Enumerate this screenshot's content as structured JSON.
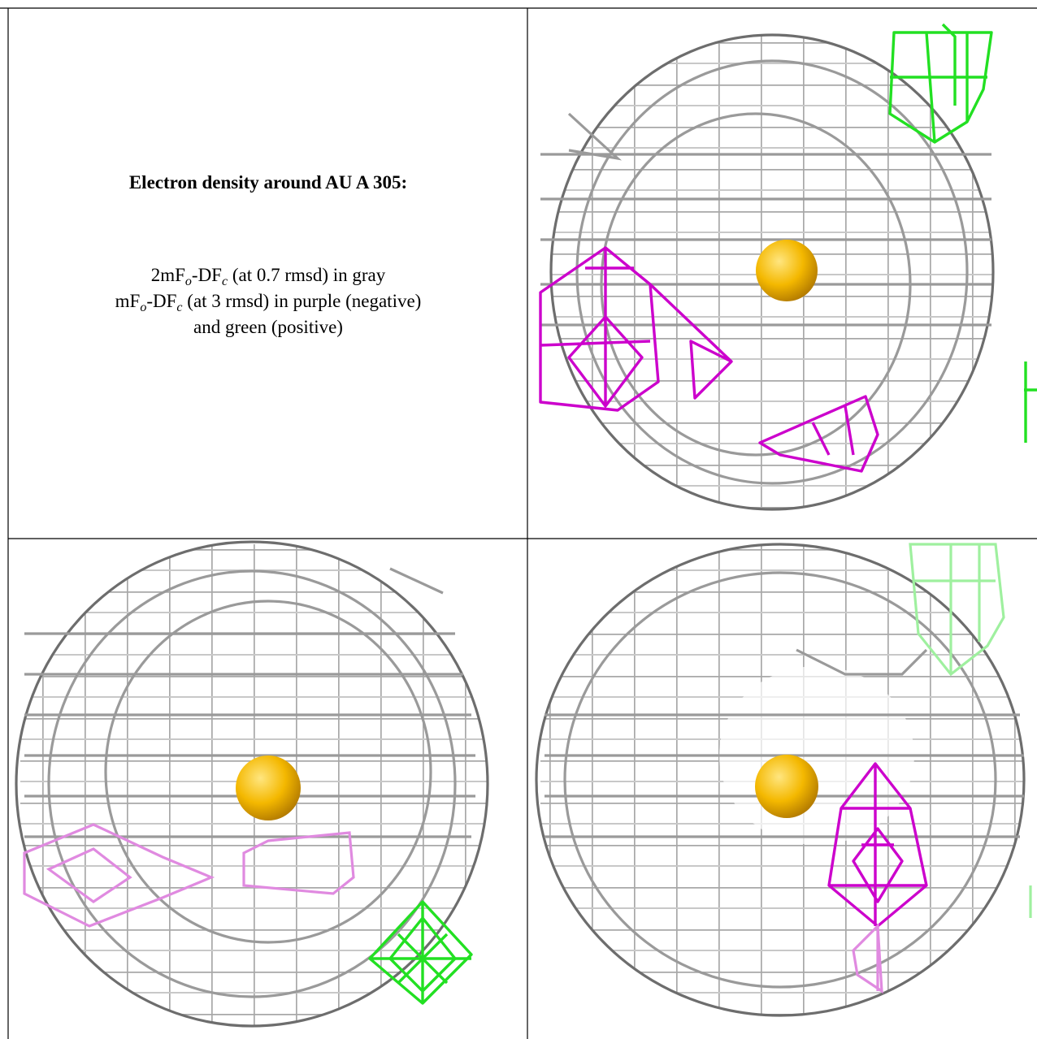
{
  "caption": {
    "title": "Electron density around AU A 305:",
    "lines": [
      [
        "2mF",
        "o",
        "-DF",
        "c",
        " (at 0.7 rmsd) in gray"
      ],
      [
        "mF",
        "o",
        "-DF",
        "c",
        " (at 3 rmsd) in purple (negative)"
      ],
      [
        "and green (positive)"
      ]
    ]
  }
}
